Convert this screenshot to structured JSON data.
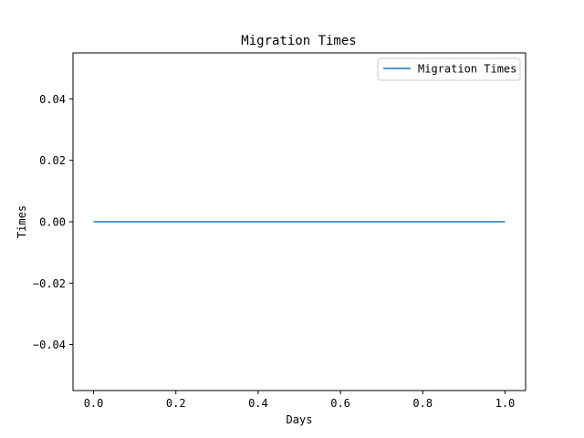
{
  "chart_data": {
    "type": "line",
    "title": "Migration Times",
    "xlabel": "Days",
    "ylabel": "Times",
    "xlim": [
      -0.05,
      1.05
    ],
    "ylim": [
      -0.055,
      0.055
    ],
    "xticks": [
      0.0,
      0.2,
      0.4,
      0.6,
      0.8,
      1.0
    ],
    "xtick_labels": [
      "0.0",
      "0.2",
      "0.4",
      "0.6",
      "0.8",
      "1.0"
    ],
    "yticks": [
      -0.04,
      -0.02,
      0.0,
      0.02,
      0.04
    ],
    "ytick_labels": [
      "−0.04",
      "−0.02",
      "0.00",
      "0.02",
      "0.04"
    ],
    "grid": false,
    "legend_position": "top-right",
    "series": [
      {
        "name": "Migration Times",
        "color": "#1f77b4",
        "x": [
          0.0,
          1.0
        ],
        "y": [
          0.0,
          0.0
        ]
      }
    ]
  }
}
